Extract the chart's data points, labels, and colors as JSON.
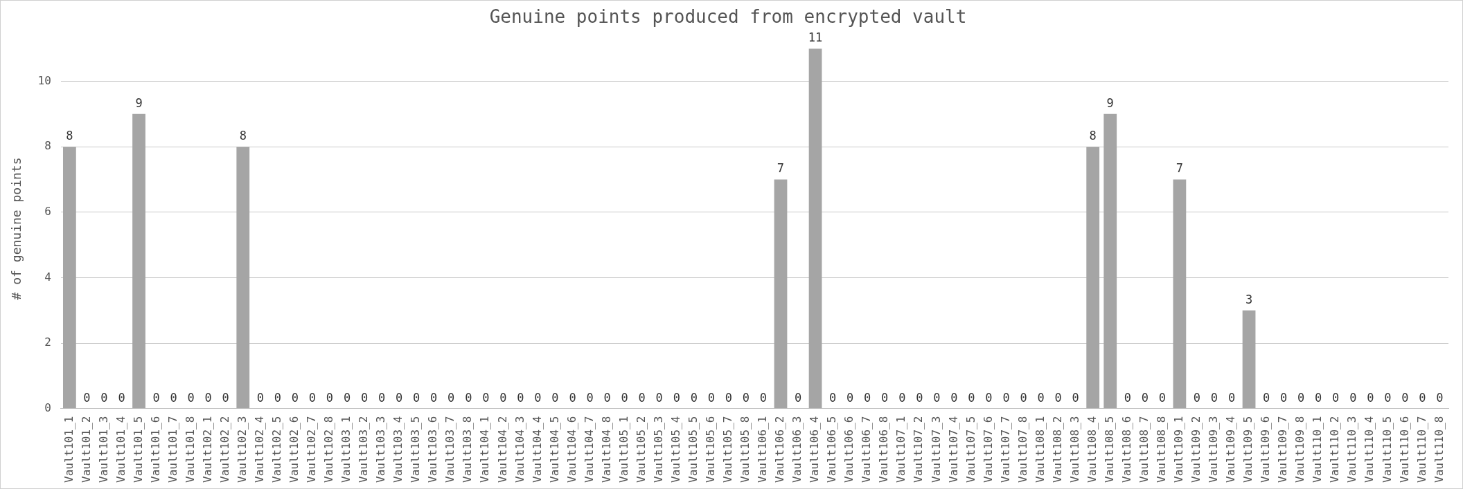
{
  "chart_data": {
    "type": "bar",
    "title": "Genuine points produced from encrypted vault",
    "ylabel": "# of genuine points",
    "categories": [
      "Vault101_1",
      "Vault101_2",
      "Vault101_3",
      "Vault101_4",
      "Vault101_5",
      "Vault101_6",
      "Vault101_7",
      "Vault101_8",
      "Vault102_1",
      "Vault102_2",
      "Vault102_3",
      "Vault102_4",
      "Vault102_5",
      "Vault102_6",
      "Vault102_7",
      "Vault102_8",
      "Vault103_1",
      "Vault103_2",
      "Vault103_3",
      "Vault103_4",
      "Vault103_5",
      "Vault103_6",
      "Vault103_7",
      "Vault103_8",
      "Vault104_1",
      "Vault104_2",
      "Vault104_3",
      "Vault104_4",
      "Vault104_5",
      "Vault104_6",
      "Vault104_7",
      "Vault104_8",
      "Vault105_1",
      "Vault105_2",
      "Vault105_3",
      "Vault105_4",
      "Vault105_5",
      "Vault105_6",
      "Vault105_7",
      "Vault105_8",
      "Vault106_1",
      "Vault106_2",
      "Vault106_3",
      "Vault106_4",
      "Vault106_5",
      "Vault106_6",
      "Vault106_7",
      "Vault106_8",
      "Vault107_1",
      "Vault107_2",
      "Vault107_3",
      "Vault107_4",
      "Vault107_5",
      "Vault107_6",
      "Vault107_7",
      "Vault107_8",
      "Vault108_1",
      "Vault108_2",
      "Vault108_3",
      "Vault108_4",
      "Vault108_5",
      "Vault108_6",
      "Vault108_7",
      "Vault108_8",
      "Vault109_1",
      "Vault109_2",
      "Vault109_3",
      "Vault109_4",
      "Vault109_5",
      "Vault109_6",
      "Vault109_7",
      "Vault109_8",
      "Vault110_1",
      "Vault110_2",
      "Vault110_3",
      "Vault110_4",
      "Vault110_5",
      "Vault110_6",
      "Vault110_7",
      "Vault110_8"
    ],
    "values": [
      8,
      0,
      0,
      0,
      9,
      0,
      0,
      0,
      0,
      0,
      8,
      0,
      0,
      0,
      0,
      0,
      0,
      0,
      0,
      0,
      0,
      0,
      0,
      0,
      0,
      0,
      0,
      0,
      0,
      0,
      0,
      0,
      0,
      0,
      0,
      0,
      0,
      0,
      0,
      0,
      0,
      7,
      0,
      11,
      0,
      0,
      0,
      0,
      0,
      0,
      0,
      0,
      0,
      0,
      0,
      0,
      0,
      0,
      0,
      8,
      9,
      0,
      0,
      0,
      7,
      0,
      0,
      0,
      3,
      0,
      0,
      0,
      0,
      0,
      0,
      0,
      0,
      0,
      0,
      0
    ],
    "color": "#a5a5a5",
    "ylim": [
      0,
      11
    ],
    "yticks": [
      0,
      2,
      4,
      6,
      8,
      10
    ],
    "grid": "y",
    "legend": false,
    "data_labels": true
  }
}
